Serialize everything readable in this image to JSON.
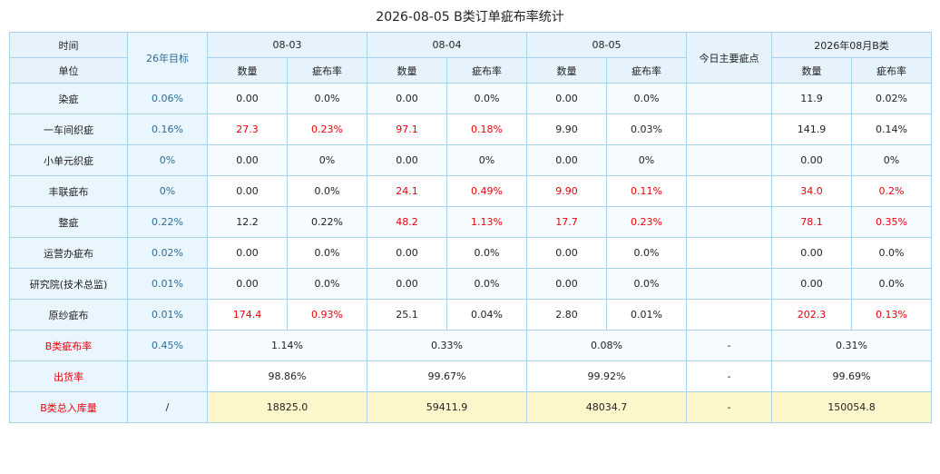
{
  "title": "2026-08-05 B类订单疵布率统计",
  "headers": {
    "time": "时间",
    "unit": "单位",
    "target": "26年目标",
    "days": [
      "08-03",
      "08-04",
      "08-05"
    ],
    "qty": "数量",
    "rate": "疵布率",
    "main_defect": "今日主要疵点",
    "month": "2026年08月B类"
  },
  "rows": [
    {
      "name": "染疵",
      "target": "0.06%",
      "d1": [
        "0.00",
        "0.0%"
      ],
      "d2": [
        "0.00",
        "0.0%"
      ],
      "d3": [
        "0.00",
        "0.0%"
      ],
      "defect": "",
      "m": [
        "11.9",
        "0.02%"
      ],
      "red": [
        false,
        false,
        false,
        false
      ]
    },
    {
      "name": "一车间织疵",
      "target": "0.16%",
      "d1": [
        "27.3",
        "0.23%"
      ],
      "d2": [
        "97.1",
        "0.18%"
      ],
      "d3": [
        "9.90",
        "0.03%"
      ],
      "defect": "",
      "m": [
        "141.9",
        "0.14%"
      ],
      "red": [
        true,
        true,
        false,
        false
      ]
    },
    {
      "name": "小单元织疵",
      "target": "0%",
      "d1": [
        "0.00",
        "0%"
      ],
      "d2": [
        "0.00",
        "0%"
      ],
      "d3": [
        "0.00",
        "0%"
      ],
      "defect": "",
      "m": [
        "0.00",
        "0%"
      ],
      "red": [
        false,
        false,
        false,
        false
      ]
    },
    {
      "name": "丰联疵布",
      "target": "0%",
      "d1": [
        "0.00",
        "0.0%"
      ],
      "d2": [
        "24.1",
        "0.49%"
      ],
      "d3": [
        "9.90",
        "0.11%"
      ],
      "defect": "",
      "m": [
        "34.0",
        "0.2%"
      ],
      "red": [
        false,
        true,
        true,
        true
      ]
    },
    {
      "name": "整疵",
      "target": "0.22%",
      "d1": [
        "12.2",
        "0.22%"
      ],
      "d2": [
        "48.2",
        "1.13%"
      ],
      "d3": [
        "17.7",
        "0.23%"
      ],
      "defect": "",
      "m": [
        "78.1",
        "0.35%"
      ],
      "red": [
        false,
        true,
        true,
        true
      ]
    },
    {
      "name": "运营办疵布",
      "target": "0.02%",
      "d1": [
        "0.00",
        "0.0%"
      ],
      "d2": [
        "0.00",
        "0.0%"
      ],
      "d3": [
        "0.00",
        "0.0%"
      ],
      "defect": "",
      "m": [
        "0.00",
        "0.0%"
      ],
      "red": [
        false,
        false,
        false,
        false
      ]
    },
    {
      "name": "研究院(技术总监)",
      "target": "0.01%",
      "d1": [
        "0.00",
        "0.0%"
      ],
      "d2": [
        "0.00",
        "0.0%"
      ],
      "d3": [
        "0.00",
        "0.0%"
      ],
      "defect": "",
      "m": [
        "0.00",
        "0.0%"
      ],
      "red": [
        false,
        false,
        false,
        false
      ]
    },
    {
      "name": "原纱疵布",
      "target": "0.01%",
      "d1": [
        "174.4",
        "0.93%"
      ],
      "d2": [
        "25.1",
        "0.04%"
      ],
      "d3": [
        "2.80",
        "0.01%"
      ],
      "defect": "",
      "m": [
        "202.3",
        "0.13%"
      ],
      "red": [
        true,
        false,
        false,
        true
      ]
    }
  ],
  "summary": [
    {
      "name": "B类疵布率",
      "target": "0.45%",
      "d": [
        "1.14%",
        "0.33%",
        "0.08%"
      ],
      "defect": "-",
      "m": "0.31%"
    },
    {
      "name": "出货率",
      "target": "",
      "d": [
        "98.86%",
        "99.67%",
        "99.92%"
      ],
      "defect": "-",
      "m": "99.69%"
    },
    {
      "name": "B类总入库量",
      "target": "/",
      "d": [
        "18825.0",
        "59411.9",
        "48034.7"
      ],
      "defect": "-",
      "m": "150054.8"
    }
  ],
  "colors": {
    "header_bg": "#e6f3fc",
    "border": "#a9d2ea",
    "red": "#e8000b",
    "target": "#2f6b96",
    "yellow": "#fff7cc"
  }
}
